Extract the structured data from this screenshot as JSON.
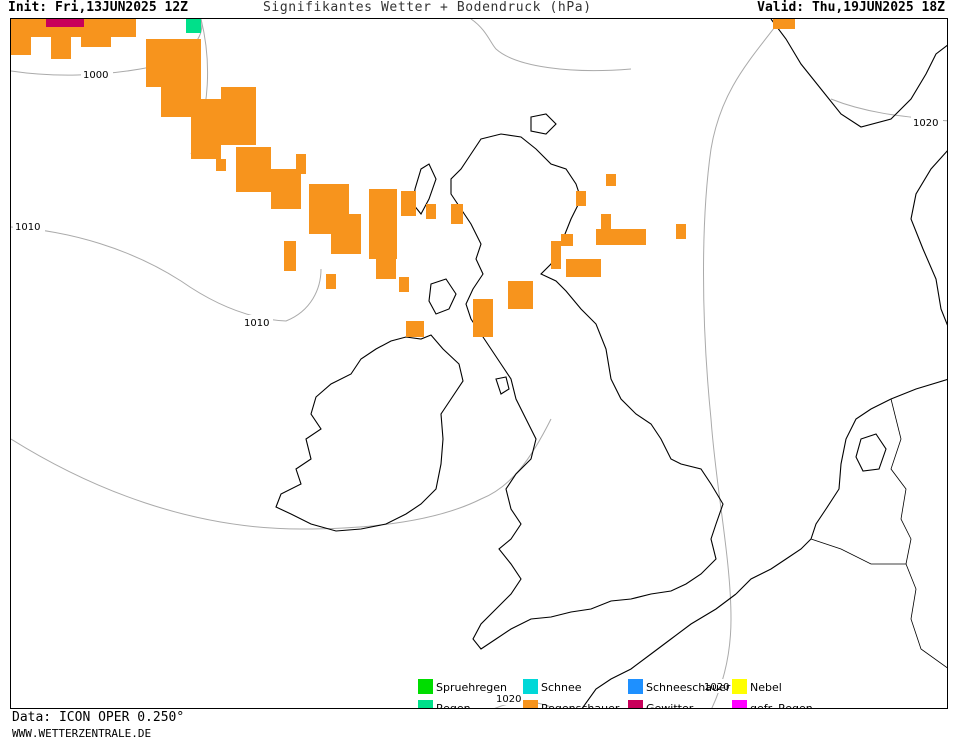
{
  "header": {
    "init": "Init: Fri,13JUN2025 12Z",
    "title": "Signifikantes Wetter + Bodendruck (hPa)",
    "valid": "Valid: Thu,19JUN2025 18Z"
  },
  "map": {
    "isobar_labels": [
      "1000",
      "1010",
      "1010",
      "1020",
      "1020",
      "1020"
    ],
    "colors": {
      "coast": "#000000",
      "isobar": "#aaaaaa",
      "shower": "#f7941d",
      "rain": "#00e08a",
      "thunder": "#c8005a"
    }
  },
  "legend": [
    {
      "label": "Spruehregen",
      "color": "#00dd00"
    },
    {
      "label": "Schnee",
      "color": "#00d8d8"
    },
    {
      "label": "Schneeschauer",
      "color": "#1e90ff"
    },
    {
      "label": "Nebel",
      "color": "#ffff00"
    },
    {
      "label": "Regen",
      "color": "#00e08a"
    },
    {
      "label": "Regenschauer",
      "color": "#f7941d"
    },
    {
      "label": "Gewitter",
      "color": "#c8005a"
    },
    {
      "label": "gefr. Regen",
      "color": "#ff00ff"
    }
  ],
  "footer": {
    "data_source": "Data: ICON OPER 0.250°",
    "website": "WWW.WETTERZENTRALE.DE"
  }
}
